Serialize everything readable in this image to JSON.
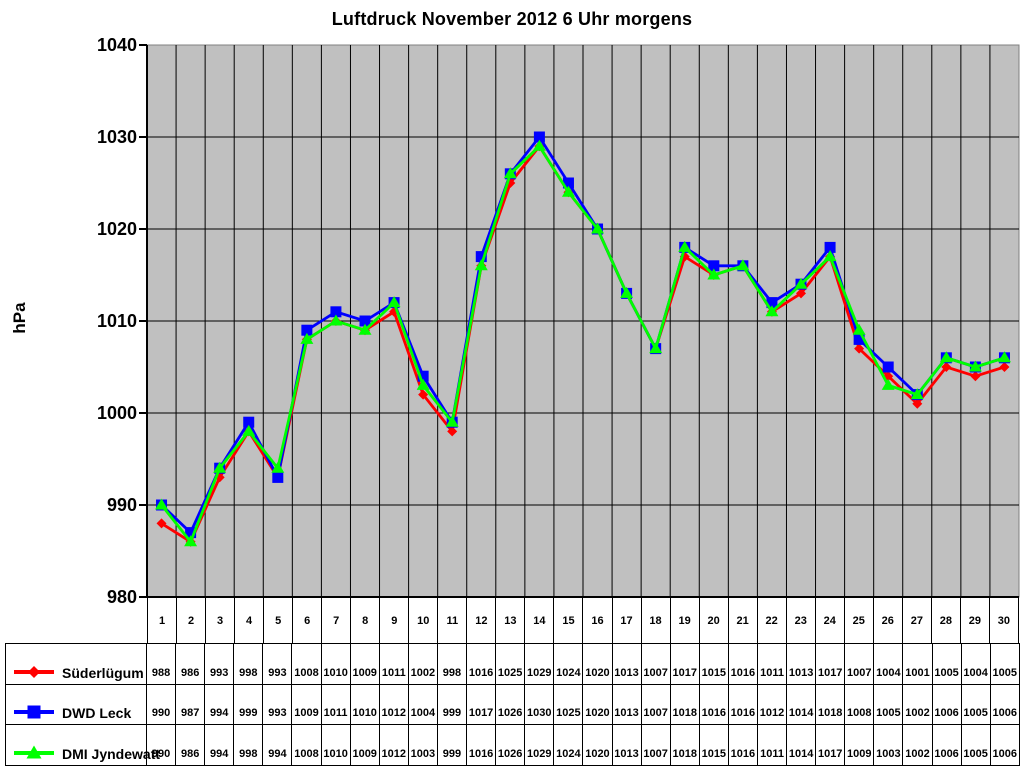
{
  "colors": {
    "plot_bg": "#C0C0C0",
    "grid": "#000000",
    "axis": "#000000",
    "plot_border_gray": "#808080",
    "series_red": "#FF0000",
    "series_blue": "#0000FF",
    "series_green": "#00FF00"
  },
  "y_axis": {
    "label": "hPa",
    "ticks": [
      980,
      990,
      1000,
      1010,
      1020,
      1030,
      1040
    ]
  },
  "chart_data": {
    "type": "line",
    "title": "Luftdruck November 2012 6 Uhr morgens",
    "xlabel": "",
    "ylabel": "hPa",
    "ylim": [
      980,
      1040
    ],
    "grid": true,
    "legend_position": "table-left",
    "categories": [
      1,
      2,
      3,
      4,
      5,
      6,
      7,
      8,
      9,
      10,
      11,
      12,
      13,
      14,
      15,
      16,
      17,
      18,
      19,
      20,
      21,
      22,
      23,
      24,
      25,
      26,
      27,
      28,
      29,
      30
    ],
    "series": [
      {
        "name": "Süderlügum",
        "color": "#FF0000",
        "marker": "diamond",
        "values": [
          988,
          986,
          993,
          998,
          993,
          1008,
          1010,
          1009,
          1011,
          1002,
          998,
          1016,
          1025,
          1029,
          1024,
          1020,
          1013,
          1007,
          1017,
          1015,
          1016,
          1011,
          1013,
          1017,
          1007,
          1004,
          1001,
          1005,
          1004,
          1005
        ]
      },
      {
        "name": "DWD Leck",
        "color": "#0000FF",
        "marker": "square",
        "values": [
          990,
          987,
          994,
          999,
          993,
          1009,
          1011,
          1010,
          1012,
          1004,
          999,
          1017,
          1026,
          1030,
          1025,
          1020,
          1013,
          1007,
          1018,
          1016,
          1016,
          1012,
          1014,
          1018,
          1008,
          1005,
          1002,
          1006,
          1005,
          1006
        ]
      },
      {
        "name": "DMI Jyndewatt",
        "color": "#00FF00",
        "marker": "triangle",
        "values": [
          990,
          986,
          994,
          998,
          994,
          1008,
          1010,
          1009,
          1012,
          1003,
          999,
          1016,
          1026,
          1029,
          1024,
          1020,
          1013,
          1007,
          1018,
          1015,
          1016,
          1011,
          1014,
          1017,
          1009,
          1003,
          1002,
          1006,
          1005,
          1006
        ]
      }
    ]
  }
}
